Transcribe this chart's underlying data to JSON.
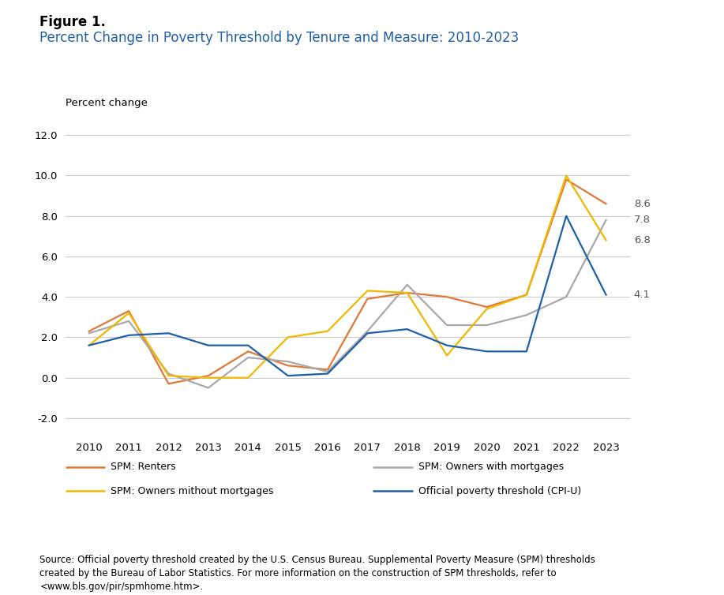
{
  "title_bold": "Figure 1.",
  "title_blue": "Percent Change in Poverty Threshold by Tenure and Measure: 2010-2023",
  "ylabel": "Percent change",
  "years": [
    2010,
    2011,
    2012,
    2013,
    2014,
    2015,
    2016,
    2017,
    2018,
    2019,
    2020,
    2021,
    2022,
    2023
  ],
  "spm_renters": [
    2.3,
    3.3,
    -0.3,
    0.1,
    1.3,
    0.6,
    0.4,
    3.9,
    4.2,
    4.0,
    3.5,
    4.1,
    9.8,
    8.6
  ],
  "spm_owners_mortgage": [
    2.2,
    2.8,
    0.2,
    -0.5,
    1.0,
    0.8,
    0.3,
    2.3,
    4.6,
    2.6,
    2.6,
    3.1,
    4.0,
    7.8
  ],
  "spm_owners_no_mortgage": [
    1.6,
    3.2,
    0.1,
    0.0,
    0.0,
    2.0,
    2.3,
    4.3,
    4.2,
    1.1,
    3.4,
    4.1,
    10.0,
    6.8
  ],
  "official_poverty": [
    1.6,
    2.1,
    2.2,
    1.6,
    1.6,
    0.1,
    0.2,
    2.2,
    2.4,
    1.6,
    1.3,
    1.3,
    8.0,
    4.1
  ],
  "colors": {
    "spm_renters": "#E07838",
    "spm_owners_mortgage": "#A8A8A8",
    "spm_owners_no_mortgage": "#F0B800",
    "official_poverty": "#1F5FA6"
  },
  "legend_labels": {
    "spm_renters": "SPM: Renters",
    "spm_owners_mortgage": "SPM: Owners with mortgages",
    "spm_owners_no_mortgage": "SPM: Owners mithout mortgages",
    "official_poverty": "Official poverty threshold (CPI-U)"
  },
  "end_label_values": {
    "spm_renters": 8.6,
    "spm_owners_mortgage": 7.8,
    "spm_owners_no_mortgage": 6.8,
    "official_poverty": 4.1
  },
  "end_label_texts": {
    "spm_renters": "8.6",
    "spm_owners_mortgage": "7.8",
    "spm_owners_no_mortgage": "6.8",
    "official_poverty": "4.1"
  },
  "ylim": [
    -2.8,
    12.5
  ],
  "yticks": [
    -2.0,
    0.0,
    2.0,
    4.0,
    6.0,
    8.0,
    10.0,
    12.0
  ],
  "source_text": "Source: Official poverty threshold created by the U.S. Census Bureau. Supplemental Poverty Measure (SPM) thresholds\ncreated by the Bureau of Labor Statistics. For more information on the construction of SPM thresholds, refer to\n<www.bls.gov/pir/spmhome.htm>.",
  "background_color": "#FFFFFF",
  "line_width": 1.6
}
